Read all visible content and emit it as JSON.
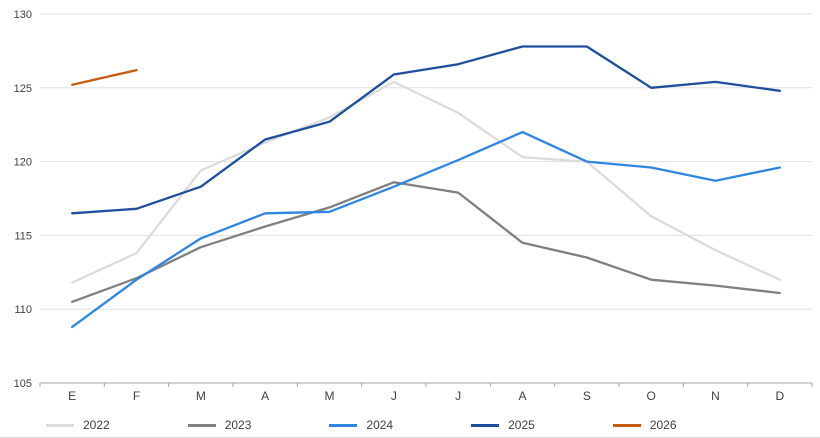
{
  "style": {
    "background": "#ffffff",
    "grid_color": "#e0e0e0",
    "axis_color": "#a6a6a6",
    "text_color": "#404040"
  },
  "chart_data": {
    "type": "line",
    "title": "",
    "xlabel": "",
    "ylabel": "",
    "x": [
      "E",
      "F",
      "M",
      "A",
      "M",
      "J",
      "J",
      "A",
      "S",
      "O",
      "N",
      "D"
    ],
    "ylim": [
      105,
      130
    ],
    "yticks": [
      105,
      110,
      115,
      120,
      125,
      130
    ],
    "grid": true,
    "legend_position": "bottom",
    "series": [
      {
        "name": "2022",
        "color": "#dcdcdc",
        "values": [
          111.8,
          113.8,
          119.4,
          121.3,
          123.0,
          125.4,
          123.3,
          120.3,
          120.0,
          116.3,
          114.0,
          112.0
        ]
      },
      {
        "name": "2023",
        "color": "#808080",
        "values": [
          110.5,
          112.1,
          114.2,
          115.6,
          116.9,
          118.6,
          117.9,
          114.5,
          113.5,
          112.0,
          111.6,
          111.1
        ]
      },
      {
        "name": "2024",
        "color": "#2f86e0",
        "values": [
          108.8,
          112.0,
          114.8,
          116.5,
          116.6,
          118.3,
          120.1,
          122.0,
          120.0,
          119.6,
          118.7,
          119.6
        ]
      },
      {
        "name": "2025",
        "color": "#1f4e9c",
        "values": [
          116.5,
          116.8,
          118.3,
          121.5,
          122.7,
          125.9,
          126.6,
          127.8,
          127.8,
          125.0,
          125.4,
          124.8
        ]
      },
      {
        "name": "2026",
        "color": "#c55a11",
        "values": [
          125.2,
          126.2,
          null,
          null,
          null,
          null,
          null,
          null,
          null,
          null,
          null,
          null
        ]
      }
    ]
  }
}
